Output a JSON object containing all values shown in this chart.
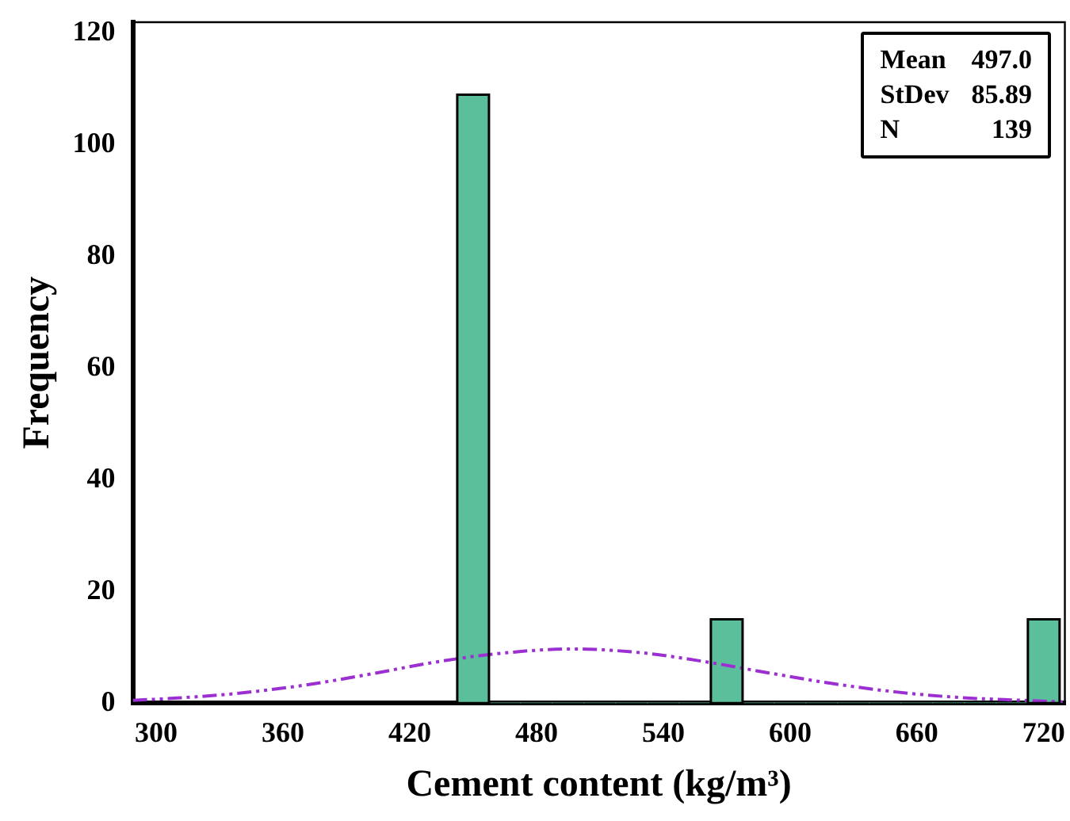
{
  "chart_data": {
    "type": "histogram",
    "xlabel": "Cement content (kg/m³)",
    "ylabel": "Frequency",
    "bins": [
      442.5,
      457.5,
      472.5,
      487.5,
      502.5,
      517.5,
      532.5,
      547.5,
      562.5,
      577.5,
      592.5,
      607.5,
      622.5,
      637.5,
      652.5,
      667.5,
      682.5,
      697.5,
      712.5,
      727.5
    ],
    "values": [
      109,
      0,
      0,
      0,
      0,
      0,
      0,
      0,
      15,
      0,
      0,
      0,
      0,
      0,
      0,
      0,
      0,
      0,
      15
    ],
    "color": "#5cbf9c",
    "series": [
      {
        "type": "line",
        "color": "#9b2fd1",
        "line_style": "dashed",
        "x": [
          289,
          310,
          340,
          370,
          400,
          430,
          460,
          497,
          530,
          560,
          590,
          620,
          650,
          680,
          710,
          730
        ],
        "values": [
          0.5,
          0.9,
          1.8,
          3.2,
          5.1,
          7.2,
          8.8,
          9.7,
          9.0,
          7.4,
          5.4,
          3.5,
          2.0,
          1.0,
          0.5,
          0.2
        ]
      }
    ],
    "xlim": [
      289,
      730
    ],
    "xticks": [
      300,
      360,
      420,
      480,
      540,
      600,
      660,
      720
    ],
    "ylim": [
      0,
      122
    ],
    "yticks": [
      0,
      20,
      40,
      60,
      80,
      100,
      120
    ],
    "grid": false,
    "legend": false,
    "annotations": [
      "Mean 497.0",
      "StDev 85.89",
      "N 139"
    ]
  }
}
